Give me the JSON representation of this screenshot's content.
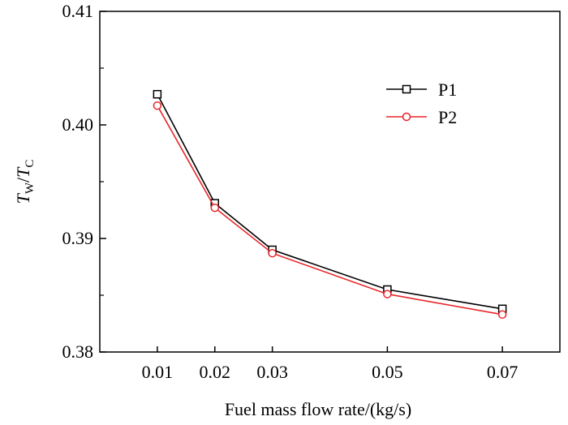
{
  "chart_data": {
    "type": "line",
    "xlabel": "Fuel mass flow rate/(kg/s)",
    "ylabel": {
      "main": "T",
      "sub1": "W",
      "slash": "/",
      "main2": "T",
      "sub2": "C"
    },
    "x": [
      0.01,
      0.02,
      0.03,
      0.05,
      0.07
    ],
    "x_tick_labels": [
      "0.01",
      "0.02",
      "0.03",
      "0.05",
      "0.07"
    ],
    "xlim": [
      0.0,
      0.08
    ],
    "y_ticks": [
      0.38,
      0.39,
      0.4,
      0.41
    ],
    "y_tick_labels": [
      "0.38",
      "0.39",
      "0.40",
      "0.41"
    ],
    "ylim": [
      0.38,
      0.41
    ],
    "grid": false,
    "legend_position": "top-right",
    "series": [
      {
        "name": "P1",
        "color": "#000000",
        "marker": "square",
        "values": [
          0.4027,
          0.3931,
          0.389,
          0.3855,
          0.3838
        ]
      },
      {
        "name": "P2",
        "color": "#e8262a",
        "marker": "circle",
        "values": [
          0.4017,
          0.3927,
          0.3887,
          0.3851,
          0.3833
        ]
      }
    ]
  }
}
